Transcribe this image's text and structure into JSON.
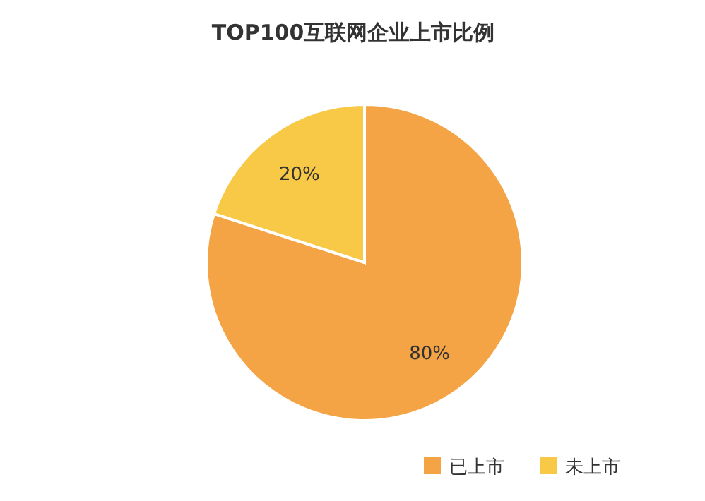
{
  "chart_data": {
    "type": "pie",
    "title": "TOP100互联网企业上市比例",
    "categories": [
      "已上市",
      "未上市"
    ],
    "values": [
      80,
      20
    ],
    "colors": [
      "#f5a445",
      "#f8c947"
    ],
    "value_labels": [
      "80%",
      "20%"
    ],
    "legend": "bottom right"
  }
}
